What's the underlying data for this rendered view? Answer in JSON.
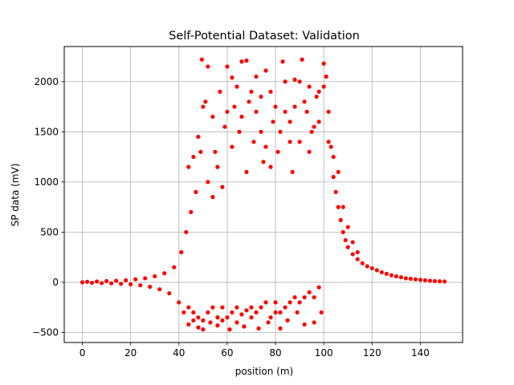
{
  "chart_data": {
    "type": "scatter",
    "title": "Self-Potential Dataset: Validation",
    "xlabel": "position (m)",
    "ylabel": "SP data (mV)",
    "xlim": [
      -7.5,
      157.5
    ],
    "ylim": [
      -600,
      2350
    ],
    "xticks": [
      0,
      20,
      40,
      60,
      80,
      100,
      120,
      140
    ],
    "yticks": [
      -500,
      0,
      500,
      1000,
      1500,
      2000
    ],
    "grid": true,
    "marker_color": "#ff0000",
    "series": [
      {
        "points": [
          [
            0,
            0
          ],
          [
            2,
            5
          ],
          [
            4,
            -5
          ],
          [
            6,
            8
          ],
          [
            8,
            -8
          ],
          [
            10,
            12
          ],
          [
            12,
            -10
          ],
          [
            14,
            15
          ],
          [
            16,
            -15
          ],
          [
            18,
            20
          ],
          [
            20,
            -20
          ],
          [
            22,
            30
          ],
          [
            24,
            -30
          ],
          [
            26,
            40
          ],
          [
            28,
            -45
          ],
          [
            30,
            60
          ],
          [
            32,
            -70
          ],
          [
            34,
            90
          ],
          [
            36,
            -110
          ],
          [
            38,
            150
          ],
          [
            40,
            -200
          ],
          [
            41,
            300
          ],
          [
            42,
            -300
          ],
          [
            43,
            500
          ],
          [
            44,
            -420
          ],
          [
            45,
            700
          ],
          [
            46,
            -380
          ],
          [
            47,
            900
          ],
          [
            48,
            -450
          ],
          [
            49,
            1300
          ],
          [
            49.5,
            2220
          ],
          [
            50,
            -470
          ],
          [
            51,
            1800
          ],
          [
            52,
            2150
          ],
          [
            53,
            -400
          ],
          [
            54,
            1650
          ],
          [
            55,
            1300
          ],
          [
            56,
            -430
          ],
          [
            57,
            1900
          ],
          [
            58,
            -380
          ],
          [
            59,
            1550
          ],
          [
            60,
            2150
          ],
          [
            61,
            -470
          ],
          [
            62,
            2040
          ],
          [
            63,
            1750
          ],
          [
            64,
            -400
          ],
          [
            65,
            1500
          ],
          [
            66,
            2200
          ],
          [
            67,
            -440
          ],
          [
            68,
            2210
          ],
          [
            69,
            1800
          ],
          [
            70,
            -350
          ],
          [
            71,
            1400
          ],
          [
            72,
            2050
          ],
          [
            73,
            -460
          ],
          [
            74,
            1500
          ],
          [
            75,
            1200
          ],
          [
            76,
            2110
          ],
          [
            77,
            -400
          ],
          [
            78,
            1900
          ],
          [
            79,
            1600
          ],
          [
            80,
            -300
          ],
          [
            81,
            1300
          ],
          [
            82,
            -460
          ],
          [
            83,
            2200
          ],
          [
            84,
            1700
          ],
          [
            85,
            -380
          ],
          [
            86,
            1400
          ],
          [
            87,
            1100
          ],
          [
            88,
            2020
          ],
          [
            89,
            -300
          ],
          [
            90,
            2000
          ],
          [
            91,
            2220
          ],
          [
            92,
            -420
          ],
          [
            93,
            1700
          ],
          [
            94,
            1300
          ],
          [
            95,
            1500
          ],
          [
            96,
            -400
          ],
          [
            97,
            1850
          ],
          [
            98,
            1600
          ],
          [
            99,
            -300
          ],
          [
            100,
            2180
          ],
          [
            101,
            2050
          ],
          [
            102,
            1700
          ],
          [
            103,
            1350
          ],
          [
            104,
            1050
          ],
          [
            105,
            900
          ],
          [
            106,
            750
          ],
          [
            107,
            620
          ],
          [
            108,
            500
          ],
          [
            109,
            420
          ],
          [
            110,
            350
          ],
          [
            112,
            280
          ],
          [
            114,
            230
          ],
          [
            116,
            190
          ],
          [
            118,
            160
          ],
          [
            120,
            140
          ],
          [
            122,
            120
          ],
          [
            124,
            100
          ],
          [
            126,
            85
          ],
          [
            128,
            70
          ],
          [
            130,
            60
          ],
          [
            132,
            50
          ],
          [
            134,
            40
          ],
          [
            136,
            35
          ],
          [
            138,
            30
          ],
          [
            140,
            25
          ],
          [
            142,
            20
          ],
          [
            144,
            15
          ],
          [
            146,
            12
          ],
          [
            148,
            10
          ],
          [
            150,
            8
          ],
          [
            44,
            1150
          ],
          [
            46,
            1250
          ],
          [
            48,
            1450
          ],
          [
            50,
            1750
          ],
          [
            52,
            1000
          ],
          [
            54,
            850
          ],
          [
            56,
            1150
          ],
          [
            58,
            950
          ],
          [
            60,
            1700
          ],
          [
            62,
            1350
          ],
          [
            64,
            1950
          ],
          [
            66,
            1650
          ],
          [
            68,
            1100
          ],
          [
            70,
            1900
          ],
          [
            72,
            1700
          ],
          [
            74,
            1850
          ],
          [
            76,
            1350
          ],
          [
            78,
            1150
          ],
          [
            80,
            1750
          ],
          [
            82,
            1500
          ],
          [
            84,
            2000
          ],
          [
            86,
            1600
          ],
          [
            88,
            1750
          ],
          [
            90,
            1400
          ],
          [
            92,
            1800
          ],
          [
            94,
            1950
          ],
          [
            96,
            1550
          ],
          [
            98,
            1900
          ],
          [
            100,
            1950
          ],
          [
            102,
            1400
          ],
          [
            104,
            1250
          ],
          [
            106,
            1100
          ],
          [
            108,
            750
          ],
          [
            110,
            550
          ],
          [
            112,
            400
          ],
          [
            114,
            300
          ],
          [
            44,
            -250
          ],
          [
            46,
            -300
          ],
          [
            48,
            -350
          ],
          [
            50,
            -380
          ],
          [
            52,
            -300
          ],
          [
            54,
            -250
          ],
          [
            56,
            -350
          ],
          [
            58,
            -250
          ],
          [
            60,
            -350
          ],
          [
            62,
            -300
          ],
          [
            64,
            -250
          ],
          [
            66,
            -320
          ],
          [
            68,
            -280
          ],
          [
            70,
            -250
          ],
          [
            72,
            -300
          ],
          [
            74,
            -250
          ],
          [
            76,
            -200
          ],
          [
            78,
            -350
          ],
          [
            80,
            -200
          ],
          [
            82,
            -300
          ],
          [
            84,
            -250
          ],
          [
            86,
            -200
          ],
          [
            88,
            -150
          ],
          [
            90,
            -200
          ],
          [
            92,
            -150
          ],
          [
            94,
            -100
          ],
          [
            96,
            -150
          ],
          [
            98,
            -50
          ]
        ]
      }
    ]
  }
}
